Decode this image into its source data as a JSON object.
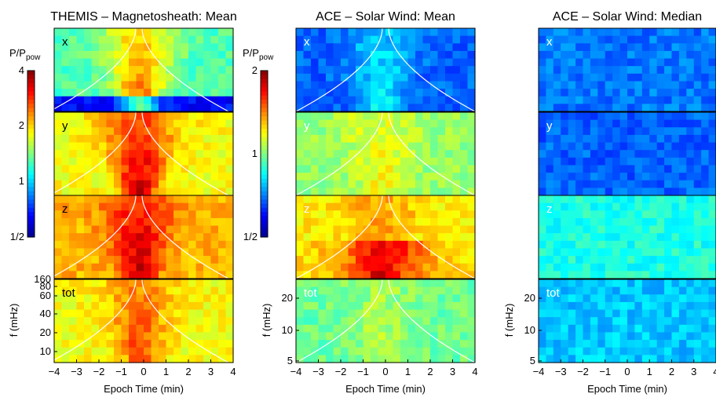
{
  "colormap": [
    "#00008f",
    "#0000ff",
    "#0080ff",
    "#00ffff",
    "#80ff80",
    "#ffff00",
    "#ff8000",
    "#ff0000",
    "#800000"
  ],
  "curve_color": "#ffffff",
  "chart_data": [
    {
      "type": "heatmap",
      "title": "THEMIS – Magnetosheath: Mean",
      "xlabel": "Epoch Time (min)",
      "ylabel": "f (mHz)",
      "xlim": [
        -4,
        4
      ],
      "x_ticks": [
        "−4",
        "−3",
        "−2",
        "−1",
        "0",
        "1",
        "2",
        "3",
        "4"
      ],
      "y_ticks": [
        "10",
        "20",
        "40",
        "60",
        "80",
        "160"
      ],
      "colorbar": {
        "label": "P/P",
        "label_sub": "pow",
        "ticks": [
          "4",
          "2",
          "1",
          "1/2"
        ],
        "range": [
          0.5,
          4
        ],
        "scale": "log"
      },
      "panels": [
        {
          "label": "x",
          "base": 0.45,
          "peak": 0.35,
          "bottom_dark": true
        },
        {
          "label": "y",
          "base": 0.62,
          "peak": 0.32
        },
        {
          "label": "z",
          "base": 0.7,
          "peak": 0.24
        },
        {
          "label": "tot",
          "base": 0.62,
          "peak": 0.2
        }
      ]
    },
    {
      "type": "heatmap",
      "title": "ACE – Solar Wind: Mean",
      "xlabel": "Epoch Time (min)",
      "ylabel": "f (mHz)",
      "xlim": [
        -4,
        4
      ],
      "x_ticks": [
        "−4",
        "−3",
        "−2",
        "−1",
        "0",
        "1",
        "2",
        "3",
        "4"
      ],
      "y_ticks": [
        "5",
        "10",
        "20"
      ],
      "colorbar": {
        "label": "P/P",
        "label_sub": "pow",
        "ticks": [
          "2",
          "1",
          "1/2"
        ],
        "range": [
          0.5,
          2
        ],
        "scale": "log"
      },
      "panels": [
        {
          "label": "x",
          "base": 0.22,
          "peak": 0.16
        },
        {
          "label": "y",
          "base": 0.52,
          "peak": 0.12
        },
        {
          "label": "z",
          "base": 0.64,
          "peak": 0.12,
          "bottom_band": 0.16
        },
        {
          "label": "tot",
          "base": 0.48,
          "peak": 0.08
        }
      ]
    },
    {
      "type": "heatmap",
      "title": "ACE – Solar Wind: Median",
      "xlabel": "Epoch Time (min)",
      "ylabel": "f (mHz)",
      "xlim": [
        -4,
        4
      ],
      "x_ticks": [
        "−4",
        "−3",
        "−2",
        "−1",
        "0",
        "1",
        "2",
        "3",
        "4"
      ],
      "y_ticks": [
        "5",
        "10",
        "20"
      ],
      "panels": [
        {
          "label": "x",
          "base": 0.24,
          "peak": 0.0
        },
        {
          "label": "y",
          "base": 0.22,
          "peak": 0.0
        },
        {
          "label": "z",
          "base": 0.4,
          "peak": 0.0
        },
        {
          "label": "tot",
          "base": 0.32,
          "peak": 0.0
        }
      ]
    }
  ]
}
